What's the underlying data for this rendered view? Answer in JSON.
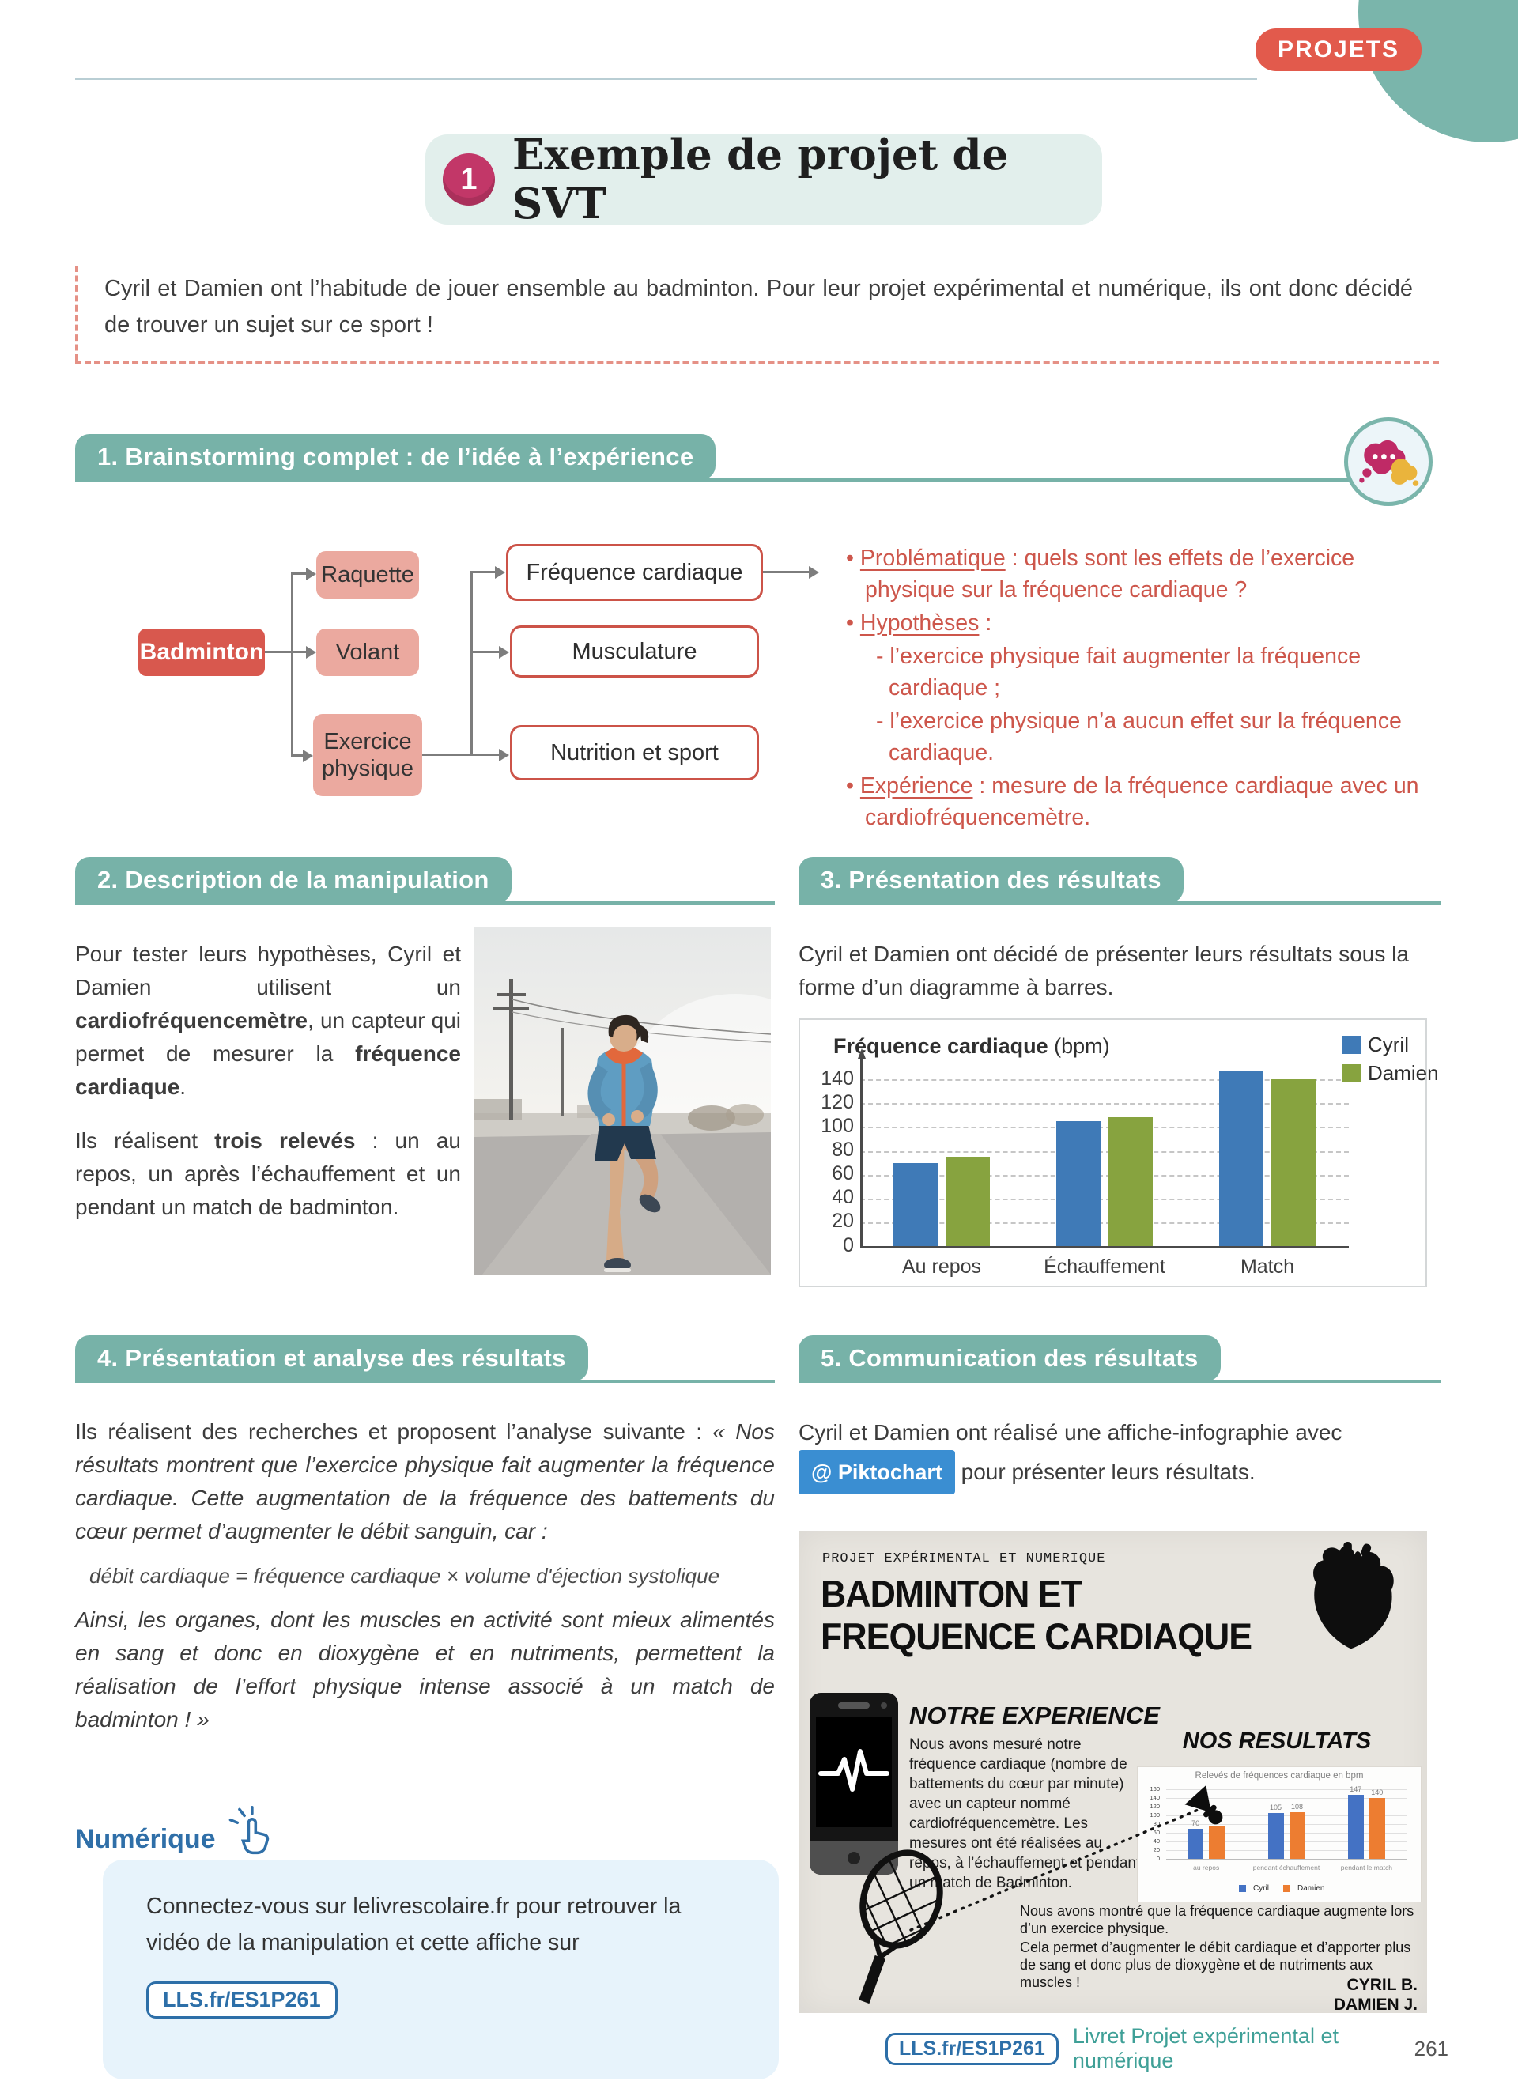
{
  "page": {
    "top_badge": "PROJETS",
    "footer_link": "LLS.fr/ES1P261",
    "footer_caption": "Livret Projet expérimental et numérique",
    "footer_page": "261"
  },
  "title_block": {
    "number": "1",
    "title": "Exemple de projet de SVT"
  },
  "intro": {
    "text": "Cyril et Damien ont l’habitude de jouer ensemble au badminton. Pour leur projet expérimental et numérique, ils ont donc décidé de trouver un sujet sur ce sport !"
  },
  "s1": {
    "title": "1. Brainstorming complet : de l’idée à l’expérience",
    "diagram": {
      "root": "Badminton",
      "mid": [
        "Raquette",
        "Volant",
        "Exercice physique"
      ],
      "out": [
        "Fréquence cardiaque",
        "Musculature",
        "Nutrition et sport"
      ]
    },
    "bullets": {
      "b1_label": "Problématique",
      "b1_text": " : quels sont les effets de l’exercice physique sur la fréquence cardiaque ?",
      "b2_label": "Hypothèses",
      "b2_text": " :",
      "b2_i1": "l’exercice physique fait augmenter la fréquence cardiaque ;",
      "b2_i2": "l’exercice physique n’a aucun effet sur la fréquence cardiaque.",
      "b3_label": "Expérience",
      "b3_text": " : mesure de la fréquence cardiaque avec un cardiofréquencemètre."
    }
  },
  "s2": {
    "title": "2. Description de la manipulation",
    "p1a": "Pour tester leurs hypothèses, Cyril et Damien utilisent un ",
    "p1b": "cardiofréquencemètre",
    "p1c": ", un capteur qui permet de mesurer la ",
    "p1d": "fréquence cardiaque",
    "p1e": ".",
    "p2a": "Ils réalisent ",
    "p2b": "trois relevés",
    "p2c": " : un au repos, un après l’échauffement et un pendant un match de badminton."
  },
  "s3": {
    "title": "3. Présentation des résultats",
    "lead": "Cyril et Damien ont décidé de présenter leurs résultats sous  la forme d’un diagramme à barres."
  },
  "s4": {
    "title": "4. Présentation et analyse des résultats",
    "p1a": "Ils réalisent des recherches et proposent l’analyse suivante : ",
    "p1b": "« Nos résultats montrent que l’exercice physique fait augmenter la fréquence cardiaque. Cette augmentation de la fréquence des battements du cœur permet d’augmenter le débit sanguin, car :",
    "formula": "débit cardiaque = fréquence cardiaque × volume d'éjection systolique",
    "p2": "Ainsi, les organes, dont les muscles en activité sont mieux alimentés en sang et donc en dioxygène et en nutriments, permettent la réalisation de l’effort physique intense associé à un match de badminton ! »"
  },
  "s5": {
    "title": "5. Communication des résultats",
    "lead1": "Cyril et Damien ont réalisé une affiche-infographie avec",
    "badge": "@ Piktochart",
    "lead2": "pour présenter leurs résultats."
  },
  "numerique": {
    "heading": "Numérique",
    "text": "Connectez-vous sur lelivrescolaire.fr pour retrouver la vidéo de la manipulation et cette affiche sur",
    "pill": "LLS.fr/ES1P261"
  },
  "poster": {
    "kicker": "PROJET EXPÉRIMENTAL ET NUMERIQUE",
    "title_line1": "BADMINTON ET",
    "title_line2": "FREQUENCE CARDIAQUE",
    "experience_heading": "NOTRE EXPERIENCE",
    "experience_text": "Nous avons mesuré notre fréquence cardiaque (nombre de battements du cœur par minute) avec un capteur nommé cardiofréquencemètre. Les mesures ont été réalisées au repos, à l’échauffement et pendant un match de Badminton.",
    "results_heading": "NOS RESULTATS",
    "conclusion1": "Nous avons montré que la fréquence cardiaque augmente lors d’un exercice physique.",
    "conclusion2": "Cela permet d’augmenter le débit cardiaque et d’apporter plus de sang et donc plus de dioxygène et de nutriments aux muscles !",
    "signature1": "CYRIL B.",
    "signature2": "DAMIEN J."
  },
  "chart_data": [
    {
      "type": "bar",
      "title": "Fréquence cardiaque",
      "title_suffix": "(bpm)",
      "categories": [
        "Au repos",
        "Échauffement",
        "Match"
      ],
      "series": [
        {
          "name": "Cyril",
          "color": "#3f7ab7",
          "values": [
            70,
            105,
            147
          ]
        },
        {
          "name": "Damien",
          "color": "#87a33f",
          "values": [
            75,
            108,
            140
          ]
        }
      ],
      "ylim": [
        0,
        150
      ],
      "ytick_step": 20,
      "ytick_max": 140,
      "grid": "dashed",
      "legend_position": "top-right"
    },
    {
      "type": "bar",
      "title": "Relevés de fréquences cardiaque en bpm",
      "categories": [
        "au repos",
        "pendant échauffement",
        "pendant le match"
      ],
      "series": [
        {
          "name": "Cyril",
          "color": "#4472c4",
          "values": [
            70,
            105,
            147
          ]
        },
        {
          "name": "Damien",
          "color": "#ed7d31",
          "values": [
            75,
            108,
            140
          ]
        }
      ],
      "ylim": [
        0,
        160
      ],
      "ytick_step": 20,
      "ytick_max": 160,
      "grid": "solid",
      "value_labels": true,
      "legend_position": "bottom"
    }
  ]
}
